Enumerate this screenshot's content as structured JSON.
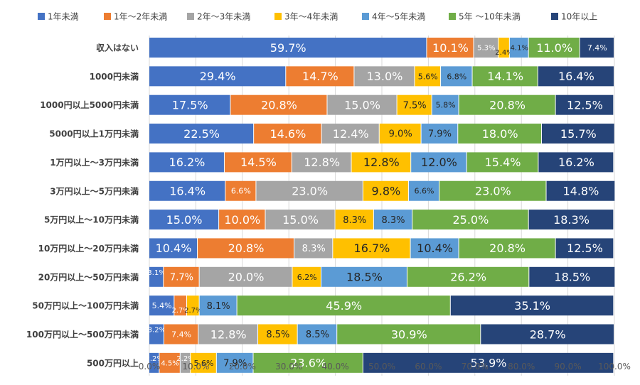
{
  "chart_data": {
    "type": "bar",
    "orientation": "horizontal",
    "stacked": true,
    "xlim": [
      0,
      100
    ],
    "grid": "vertical",
    "legend_position": "top",
    "x_ticks": [
      "0.0%",
      "10.0%",
      "20.0%",
      "30.0%",
      "40.0%",
      "50.0%",
      "60.0%",
      "70.0%",
      "80.0%",
      "90.0%",
      "100.0%"
    ],
    "categories": [
      "収入はない",
      "1000円未満",
      "1000円以上5000円未満",
      "5000円以上1万円未満",
      "1万円以上～3万円未満",
      "3万円以上～5万円未満",
      "5万円以上～10万円未満",
      "10万円以上～20万円未満",
      "20万円以上～50万円未満",
      "50万円以上～100万円未満",
      "100万円以上～500万円未満",
      "500万円以上"
    ],
    "series": [
      {
        "name": "1年未満",
        "color": "#4472C4",
        "values": [
          59.7,
          29.4,
          17.5,
          22.5,
          16.2,
          16.4,
          15.0,
          10.4,
          3.1,
          5.4,
          3.2,
          2.2
        ]
      },
      {
        "name": "1年～2年未満",
        "color": "#ED7D31",
        "values": [
          10.1,
          14.7,
          20.8,
          14.6,
          14.5,
          6.6,
          10.0,
          20.8,
          7.7,
          2.7,
          7.4,
          4.5
        ]
      },
      {
        "name": "2年～3年未満",
        "color": "#A5A5A5",
        "values": [
          5.3,
          13.0,
          15.0,
          12.4,
          12.8,
          23.0,
          15.0,
          8.3,
          20.0,
          0.0,
          12.8,
          2.2
        ]
      },
      {
        "name": "3年～4年未満",
        "color": "#FFC000",
        "values": [
          2.4,
          5.6,
          7.5,
          9.0,
          12.8,
          9.8,
          8.3,
          16.7,
          6.2,
          2.7,
          8.5,
          5.6
        ]
      },
      {
        "name": "4年～5年未満",
        "color": "#5B9BD5",
        "values": [
          4.1,
          6.8,
          5.8,
          7.9,
          12.0,
          6.6,
          8.3,
          10.4,
          18.5,
          8.1,
          8.5,
          7.9
        ]
      },
      {
        "name": "5年 ～10年未満",
        "color": "#70AD47",
        "values": [
          11.0,
          14.1,
          20.8,
          18.0,
          15.4,
          23.0,
          25.0,
          20.8,
          26.2,
          45.9,
          30.9,
          23.6
        ]
      },
      {
        "name": "10年以上",
        "color": "#264478",
        "values": [
          7.4,
          16.4,
          12.5,
          15.7,
          16.2,
          14.8,
          18.3,
          12.5,
          18.5,
          35.1,
          28.7,
          53.9
        ]
      }
    ]
  }
}
